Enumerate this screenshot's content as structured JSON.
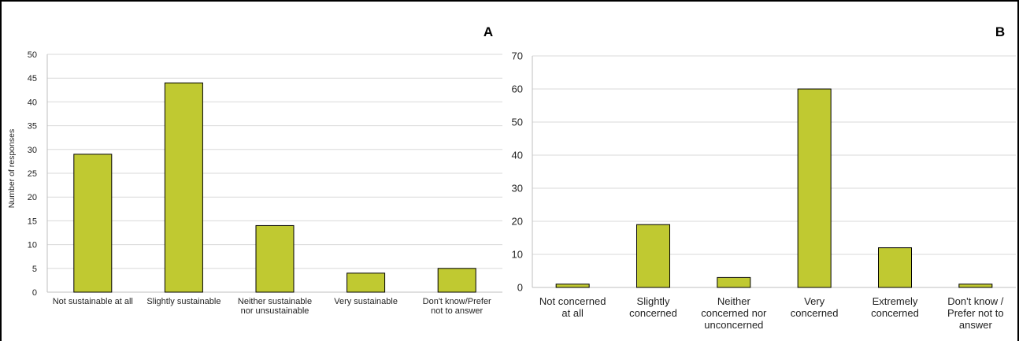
{
  "chart_data": [
    {
      "type": "bar",
      "panel_label": "A",
      "ylabel": "Number of responses",
      "ylim": [
        0,
        50
      ],
      "yticks": [
        0,
        5,
        10,
        15,
        20,
        25,
        30,
        35,
        40,
        45,
        50
      ],
      "grid": true,
      "bar_color": "#c0c931",
      "categories": [
        [
          "Not sustainable at all"
        ],
        [
          "Slightly sustainable"
        ],
        [
          "Neither sustainable",
          "nor unsustainable"
        ],
        [
          "Very sustainable"
        ],
        [
          "Don't know/Prefer",
          "not to answer"
        ]
      ],
      "values": [
        29,
        44,
        14,
        4,
        5
      ]
    },
    {
      "type": "bar",
      "panel_label": "B",
      "ylabel": "",
      "ylim": [
        0,
        70
      ],
      "yticks": [
        0,
        10,
        20,
        30,
        40,
        50,
        60,
        70
      ],
      "grid": true,
      "bar_color": "#c0c931",
      "categories": [
        [
          "Not concerned",
          "at all"
        ],
        [
          "Slightly",
          "concerned"
        ],
        [
          "Neither",
          "concerned nor",
          "unconcerned"
        ],
        [
          "Very",
          "concerned"
        ],
        [
          "Extremely",
          "concerned"
        ],
        [
          "Don't know /",
          "Prefer not to",
          "answer"
        ]
      ],
      "values": [
        1,
        19,
        3,
        60,
        12,
        1
      ]
    }
  ]
}
